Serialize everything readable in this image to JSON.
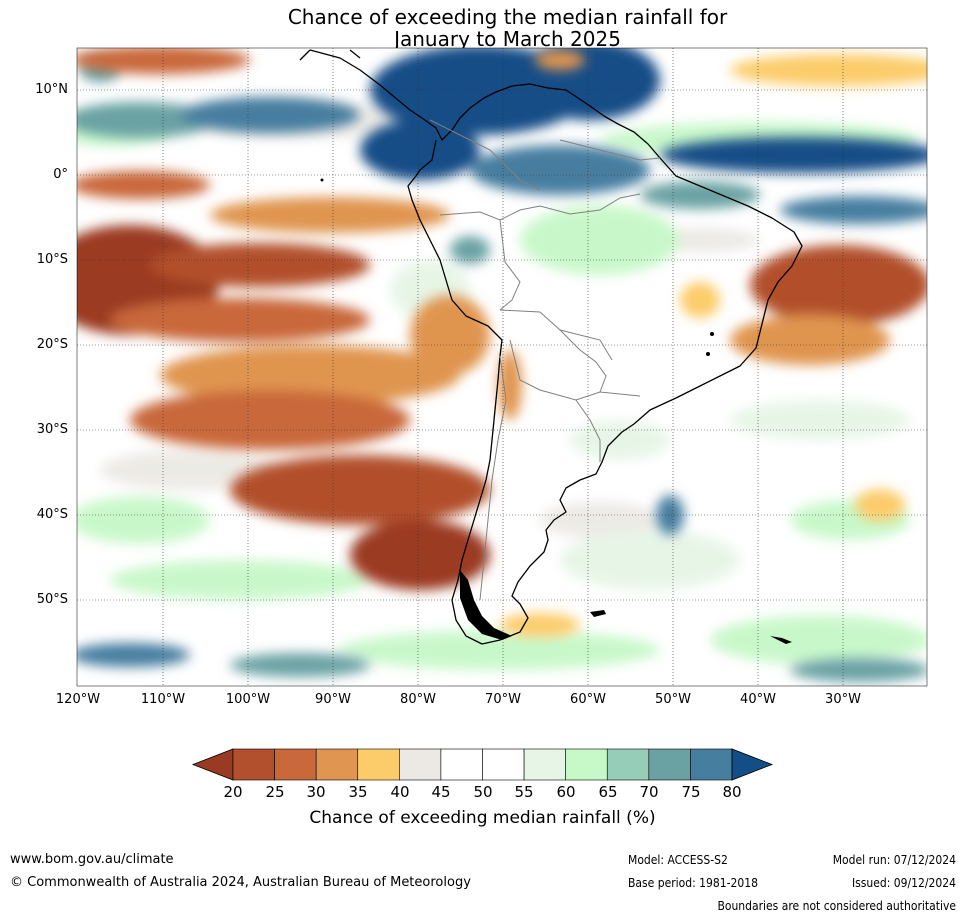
{
  "title": {
    "line1": "Chance of exceeding the median rainfall for",
    "line2": "January to March 2025"
  },
  "map": {
    "lat_ticks": [
      "10°N",
      "0°",
      "10°S",
      "20°S",
      "30°S",
      "40°S",
      "50°S"
    ],
    "lon_ticks": [
      "120°W",
      "110°W",
      "100°W",
      "90°W",
      "80°W",
      "70°W",
      "60°W",
      "50°W",
      "40°W",
      "30°W"
    ],
    "region": "South America and surrounding oceans"
  },
  "colorbar": {
    "title": "Chance of exceeding median rainfall (%)",
    "ticks": [
      "20",
      "25",
      "30",
      "35",
      "40",
      "45",
      "50",
      "55",
      "60",
      "65",
      "70",
      "75",
      "80"
    ],
    "colors": [
      "#9b3a22",
      "#b24f2c",
      "#c9683a",
      "#e09550",
      "#fccc6b",
      "#ece9e4",
      "#ffffff",
      "#ffffff",
      "#e6f5e6",
      "#c6f8c8",
      "#96cdb8",
      "#6aa2a4",
      "#467ea0",
      "#134e87"
    ]
  },
  "footer": {
    "website": "www.bom.gov.au/climate",
    "copyright": "© Commonwealth of Australia 2024, Australian Bureau of Meteorology",
    "model": "Model: ACCESS-S2",
    "base_period": "Base period: 1981-2018",
    "model_run": "Model run: 07/12/2024",
    "issued": "Issued: 09/12/2024",
    "boundaries_note": "Boundaries are not considered authoritative"
  }
}
